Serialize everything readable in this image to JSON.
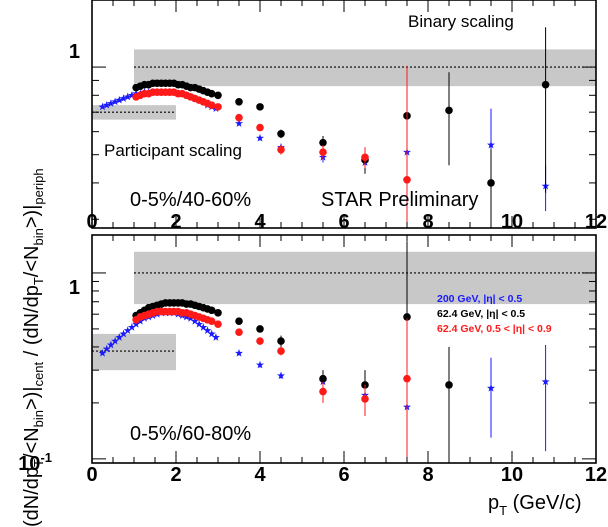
{
  "chart_data": [
    {
      "type": "scatter",
      "panel": "top",
      "yscale": "log",
      "xlim": [
        0,
        12
      ],
      "ylim": [
        0.28,
        1.7
      ],
      "x_tick_labels": [
        "0",
        "2",
        "4",
        "6",
        "8",
        "10",
        "12"
      ],
      "y_tick_labels": [
        "1"
      ],
      "ylabel": "(dN/dpT/<Nbin>)|cent / (dN/dpT/<Nbin>)|periph",
      "ylabel_parts": {
        "pre": "(dN/dp",
        "sub_t": "T",
        "mid": "/<N",
        "sub_bin": "bin",
        "post1": ">)|",
        "sub_cent": "cent",
        "sep": " / (dN/dp",
        "sub_t2": "T",
        "mid2": "/<N",
        "sub_bin2": "bin",
        "post2": ">)|",
        "sub_periph": "periph"
      },
      "annotations": {
        "binary": "Binary scaling",
        "participant": "Participant scaling",
        "centrality": "0-5%/40-60%",
        "preliminary": "STAR Preliminary"
      },
      "bands": [
        {
          "name": "binary",
          "x": [
            1.0,
            12.0
          ],
          "y": [
            0.86,
            1.15
          ],
          "line": 1.0,
          "color": "#c8c8c8"
        },
        {
          "name": "participant",
          "x": [
            0,
            2.0
          ],
          "y": [
            0.66,
            0.74
          ],
          "line": 0.7,
          "color": "#c8c8c8"
        }
      ],
      "series": [
        {
          "key": "s200",
          "color": "#1a1aff",
          "marker": "star",
          "x": [
            0.25,
            0.35,
            0.45,
            0.55,
            0.65,
            0.75,
            0.85,
            0.95,
            1.05,
            1.15,
            1.25,
            1.35,
            1.45,
            1.55,
            1.65,
            1.75,
            1.85,
            1.95,
            2.05,
            2.15,
            2.25,
            2.35,
            2.45,
            2.55,
            2.65,
            2.75,
            2.85,
            2.95,
            3.5,
            4.0,
            4.5,
            5.5,
            6.5,
            7.5,
            9.5,
            10.8
          ],
          "y": [
            0.73,
            0.74,
            0.75,
            0.76,
            0.77,
            0.78,
            0.79,
            0.8,
            0.81,
            0.81,
            0.82,
            0.82,
            0.82,
            0.82,
            0.82,
            0.82,
            0.82,
            0.82,
            0.81,
            0.81,
            0.8,
            0.79,
            0.78,
            0.77,
            0.76,
            0.74,
            0.73,
            0.72,
            0.64,
            0.57,
            0.53,
            0.49,
            0.47,
            0.51,
            0.54,
            0.39
          ],
          "err": [
            0,
            0,
            0,
            0,
            0,
            0,
            0,
            0,
            0,
            0,
            0,
            0,
            0,
            0,
            0,
            0,
            0,
            0,
            0,
            0,
            0,
            0,
            0,
            0,
            0,
            0,
            0,
            0,
            0.01,
            0.01,
            0.015,
            0.02,
            0.03,
            0.07,
            0.18,
            0.07
          ]
        },
        {
          "key": "s62",
          "color": "#000000",
          "marker": "circle",
          "x": [
            1.05,
            1.15,
            1.25,
            1.35,
            1.45,
            1.55,
            1.65,
            1.75,
            1.85,
            1.95,
            2.05,
            2.15,
            2.25,
            2.35,
            2.45,
            2.55,
            2.65,
            2.75,
            2.85,
            3.0,
            3.5,
            4.0,
            4.5,
            5.5,
            6.5,
            7.5,
            8.5,
            9.5,
            10.8
          ],
          "y": [
            0.85,
            0.86,
            0.87,
            0.87,
            0.88,
            0.88,
            0.88,
            0.88,
            0.88,
            0.88,
            0.87,
            0.87,
            0.86,
            0.85,
            0.85,
            0.84,
            0.83,
            0.82,
            0.81,
            0.8,
            0.76,
            0.73,
            0.59,
            0.55,
            0.48,
            0.68,
            0.71,
            0.4,
            0.87
          ],
          "err": [
            0,
            0,
            0,
            0,
            0,
            0,
            0,
            0,
            0,
            0,
            0,
            0,
            0,
            0,
            0,
            0,
            0,
            0,
            0,
            0,
            0,
            0,
            0.02,
            0.03,
            0.05,
            0.12,
            0.25,
            0.12,
            0.5
          ]
        },
        {
          "key": "s62f",
          "color": "#ff1a1a",
          "marker": "circle",
          "x": [
            1.05,
            1.15,
            1.25,
            1.35,
            1.45,
            1.55,
            1.65,
            1.75,
            1.85,
            1.95,
            2.05,
            2.15,
            2.25,
            2.35,
            2.45,
            2.55,
            2.65,
            2.75,
            2.85,
            3.0,
            3.5,
            4.0,
            4.5,
            5.5,
            6.5,
            7.5
          ],
          "y": [
            0.79,
            0.8,
            0.81,
            0.81,
            0.82,
            0.82,
            0.82,
            0.82,
            0.82,
            0.82,
            0.81,
            0.81,
            0.8,
            0.79,
            0.78,
            0.77,
            0.76,
            0.75,
            0.74,
            0.73,
            0.67,
            0.62,
            0.52,
            0.51,
            0.49,
            0.41
          ],
          "err": [
            0,
            0,
            0,
            0,
            0,
            0,
            0,
            0,
            0,
            0,
            0,
            0,
            0,
            0,
            0,
            0,
            0,
            0,
            0,
            0,
            0,
            0,
            0.02,
            0.03,
            0.04,
            0.6
          ]
        }
      ]
    },
    {
      "type": "scatter",
      "panel": "bottom",
      "yscale": "log",
      "xlim": [
        0,
        12
      ],
      "ylim": [
        0.095,
        1.6
      ],
      "x_tick_labels": [
        "0",
        "2",
        "4",
        "6",
        "8",
        "10",
        "12"
      ],
      "xlabel": "pT (GeV/c)",
      "xlabel_parts": {
        "pre": "p",
        "sub": "T",
        "post": " (GeV/c)"
      },
      "y_tick_labels": [
        "1"
      ],
      "y_tick_label_min": {
        "base": "10",
        "exp": "-1"
      },
      "annotations": {
        "centrality": "0-5%/60-80%"
      },
      "legend": [
        {
          "label": "200 GeV, |η| < 0.5",
          "color": "#1a1aff"
        },
        {
          "label": "62.4 GeV, |η| < 0.5",
          "color": "#000000"
        },
        {
          "label": "62.4 GeV, 0.5 < |η| < 0.9",
          "color": "#ff1a1a"
        }
      ],
      "bands": [
        {
          "name": "binary",
          "x": [
            1.0,
            12.0
          ],
          "y": [
            0.68,
            1.3
          ],
          "line": 1.0,
          "color": "#c8c8c8"
        },
        {
          "name": "participant",
          "x": [
            0,
            2.0
          ],
          "y": [
            0.3,
            0.47
          ],
          "line": 0.38,
          "color": "#c8c8c8"
        }
      ],
      "series": [
        {
          "key": "s200",
          "color": "#1a1aff",
          "marker": "star",
          "x": [
            0.25,
            0.35,
            0.45,
            0.55,
            0.65,
            0.75,
            0.85,
            0.95,
            1.05,
            1.15,
            1.25,
            1.35,
            1.45,
            1.55,
            1.65,
            1.75,
            1.85,
            1.95,
            2.05,
            2.15,
            2.25,
            2.35,
            2.45,
            2.55,
            2.65,
            2.75,
            2.85,
            2.95,
            3.5,
            4.0,
            4.5,
            5.5,
            6.5,
            7.5,
            8.5,
            9.5,
            10.8
          ],
          "y": [
            0.37,
            0.39,
            0.41,
            0.43,
            0.45,
            0.47,
            0.49,
            0.51,
            0.53,
            0.55,
            0.57,
            0.58,
            0.59,
            0.6,
            0.61,
            0.61,
            0.61,
            0.61,
            0.6,
            0.59,
            0.58,
            0.57,
            0.55,
            0.53,
            0.51,
            0.49,
            0.47,
            0.45,
            0.37,
            0.32,
            0.28,
            0.26,
            0.22,
            0.19,
            0.25,
            0.24,
            0.26
          ],
          "err": [
            0,
            0,
            0,
            0,
            0,
            0,
            0,
            0,
            0,
            0,
            0,
            0,
            0,
            0,
            0,
            0,
            0,
            0,
            0,
            0,
            0,
            0,
            0,
            0,
            0,
            0,
            0,
            0,
            0.01,
            0.01,
            0.01,
            0.01,
            0.02,
            0.06,
            0.13,
            0.11,
            0.15
          ]
        },
        {
          "key": "s62",
          "color": "#000000",
          "marker": "circle",
          "x": [
            1.05,
            1.15,
            1.25,
            1.35,
            1.45,
            1.55,
            1.65,
            1.75,
            1.85,
            1.95,
            2.05,
            2.15,
            2.25,
            2.35,
            2.45,
            2.55,
            2.65,
            2.75,
            2.85,
            3.0,
            3.5,
            4.0,
            4.5,
            5.5,
            6.5,
            7.5,
            8.5
          ],
          "y": [
            0.59,
            0.61,
            0.63,
            0.65,
            0.66,
            0.67,
            0.68,
            0.69,
            0.69,
            0.69,
            0.69,
            0.69,
            0.68,
            0.68,
            0.67,
            0.66,
            0.65,
            0.64,
            0.63,
            0.61,
            0.55,
            0.5,
            0.43,
            0.27,
            0.25,
            0.58,
            0.25
          ],
          "err": [
            0,
            0,
            0,
            0,
            0,
            0,
            0,
            0,
            0,
            0,
            0,
            0,
            0,
            0,
            0,
            0,
            0,
            0,
            0,
            0,
            0,
            0,
            0.03,
            0.03,
            0.05,
            0.9,
            0.15
          ]
        },
        {
          "key": "s62f",
          "color": "#ff1a1a",
          "marker": "circle",
          "x": [
            1.05,
            1.15,
            1.25,
            1.35,
            1.45,
            1.55,
            1.65,
            1.75,
            1.85,
            1.95,
            2.05,
            2.15,
            2.25,
            2.35,
            2.45,
            2.55,
            2.65,
            2.75,
            2.85,
            3.0,
            3.5,
            4.0,
            4.5,
            5.5,
            6.5,
            7.5
          ],
          "y": [
            0.56,
            0.58,
            0.59,
            0.6,
            0.61,
            0.62,
            0.62,
            0.62,
            0.62,
            0.62,
            0.62,
            0.61,
            0.61,
            0.6,
            0.59,
            0.58,
            0.57,
            0.56,
            0.55,
            0.53,
            0.48,
            0.43,
            0.38,
            0.23,
            0.21,
            0.27
          ],
          "err": [
            0,
            0,
            0,
            0,
            0,
            0,
            0,
            0,
            0,
            0,
            0,
            0,
            0,
            0,
            0,
            0,
            0,
            0,
            0,
            0,
            0,
            0,
            0.02,
            0.03,
            0.04,
            0.3
          ]
        }
      ]
    }
  ]
}
